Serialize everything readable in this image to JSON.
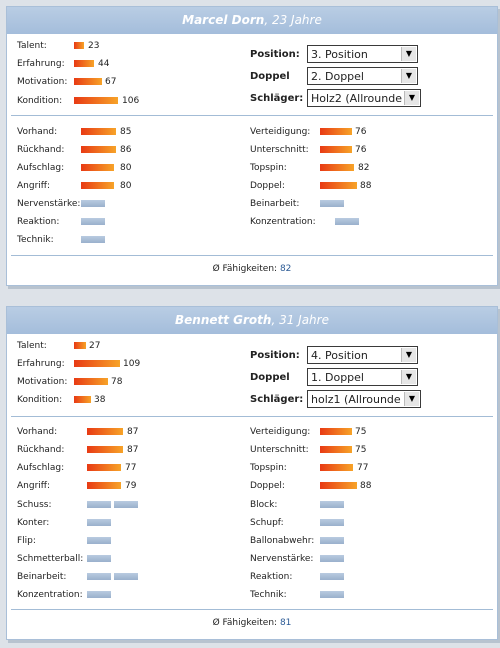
{
  "players": [
    {
      "name": "Marcel Dorn",
      "age_text": ", 23 Jahre",
      "stats": [
        {
          "label": "Talent:",
          "value": "23"
        },
        {
          "label": "Erfahrung:",
          "value": "44"
        },
        {
          "label": "Motivation:",
          "value": "67"
        },
        {
          "label": "Kondition:",
          "value": "106"
        }
      ],
      "selects": [
        {
          "label": "Position:",
          "value": "3. Position"
        },
        {
          "label": "Doppel",
          "value": "2. Doppel"
        },
        {
          "label": "Schläger:",
          "value": "Holz2 (Allrounde"
        }
      ],
      "skills_left": [
        {
          "label": "Vorhand:",
          "value": "85"
        },
        {
          "label": "Rückhand:",
          "value": "86"
        },
        {
          "label": "Aufschlag:",
          "value": "80"
        },
        {
          "label": "Angriff:",
          "value": "80"
        },
        {
          "label": "Nervenstärke:",
          "value": ""
        },
        {
          "label": "Reaktion:",
          "value": ""
        },
        {
          "label": "Technik:",
          "value": ""
        }
      ],
      "skills_right": [
        {
          "label": "Verteidigung:",
          "value": "76"
        },
        {
          "label": "Unterschnitt:",
          "value": "76"
        },
        {
          "label": "Topspin:",
          "value": "82"
        },
        {
          "label": "Doppel:",
          "value": "88"
        },
        {
          "label": "Beinarbeit:",
          "value": ""
        },
        {
          "label": "Konzentration:",
          "value": ""
        }
      ],
      "footer_label": "Ø Fähigkeiten:",
      "footer_value": "82"
    },
    {
      "name": "Bennett Groth",
      "age_text": ", 31 Jahre",
      "stats": [
        {
          "label": "Talent:",
          "value": "27"
        },
        {
          "label": "Erfahrung:",
          "value": "109"
        },
        {
          "label": "Motivation:",
          "value": "78"
        },
        {
          "label": "Kondition:",
          "value": "38"
        }
      ],
      "selects": [
        {
          "label": "Position:",
          "value": "4. Position"
        },
        {
          "label": "Doppel",
          "value": "1. Doppel"
        },
        {
          "label": "Schläger:",
          "value": "holz1 (Allrounde"
        }
      ],
      "skills_left": [
        {
          "label": "Vorhand:",
          "value": "87"
        },
        {
          "label": "Rückhand:",
          "value": "87"
        },
        {
          "label": "Aufschlag:",
          "value": "77"
        },
        {
          "label": "Angriff:",
          "value": "79"
        },
        {
          "label": "Schuss:",
          "value": ""
        },
        {
          "label": "Konter:",
          "value": ""
        },
        {
          "label": "Flip:",
          "value": ""
        },
        {
          "label": "Schmetterball:",
          "value": ""
        },
        {
          "label": "Beinarbeit:",
          "value": ""
        },
        {
          "label": "Konzentration:",
          "value": ""
        }
      ],
      "skills_right": [
        {
          "label": "Verteidigung:",
          "value": "75"
        },
        {
          "label": "Unterschnitt:",
          "value": "75"
        },
        {
          "label": "Topspin:",
          "value": "77"
        },
        {
          "label": "Doppel:",
          "value": "88"
        },
        {
          "label": "Block:",
          "value": ""
        },
        {
          "label": "Schupf:",
          "value": ""
        },
        {
          "label": "Ballonabwehr:",
          "value": ""
        },
        {
          "label": "Nervenstärke:",
          "value": ""
        },
        {
          "label": "Reaktion:",
          "value": ""
        },
        {
          "label": "Technik:",
          "value": ""
        }
      ],
      "footer_label": "Ø Fähigkeiten:",
      "footer_value": "81"
    }
  ]
}
